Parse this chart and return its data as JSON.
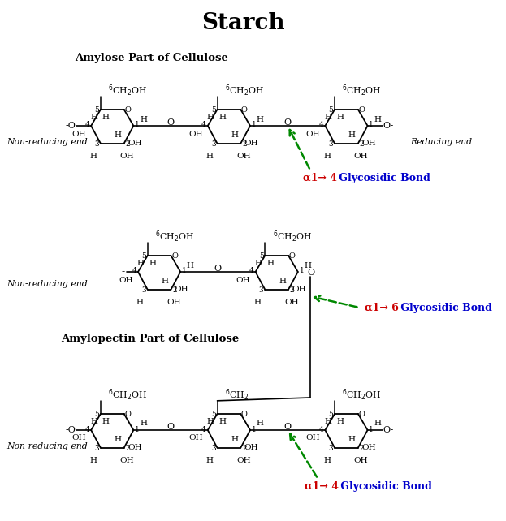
{
  "title": "Starch",
  "title_fontsize": 20,
  "bg_color": "#ffffff",
  "amylose_label": "Amylose Part of Cellulose",
  "amylopectin_label": "Amylopectin Part of Cellulose",
  "non_reducing": "Non-reducing end",
  "reducing": "Reducing end",
  "bond14_alpha": "α1→ 4",
  "bond16_alpha": "α1→ 6",
  "bond_suffix": " Glycosidic Bond",
  "red_color": "#cc0000",
  "blue_color": "#0000cc",
  "green_color": "#008800",
  "black_color": "#000000"
}
